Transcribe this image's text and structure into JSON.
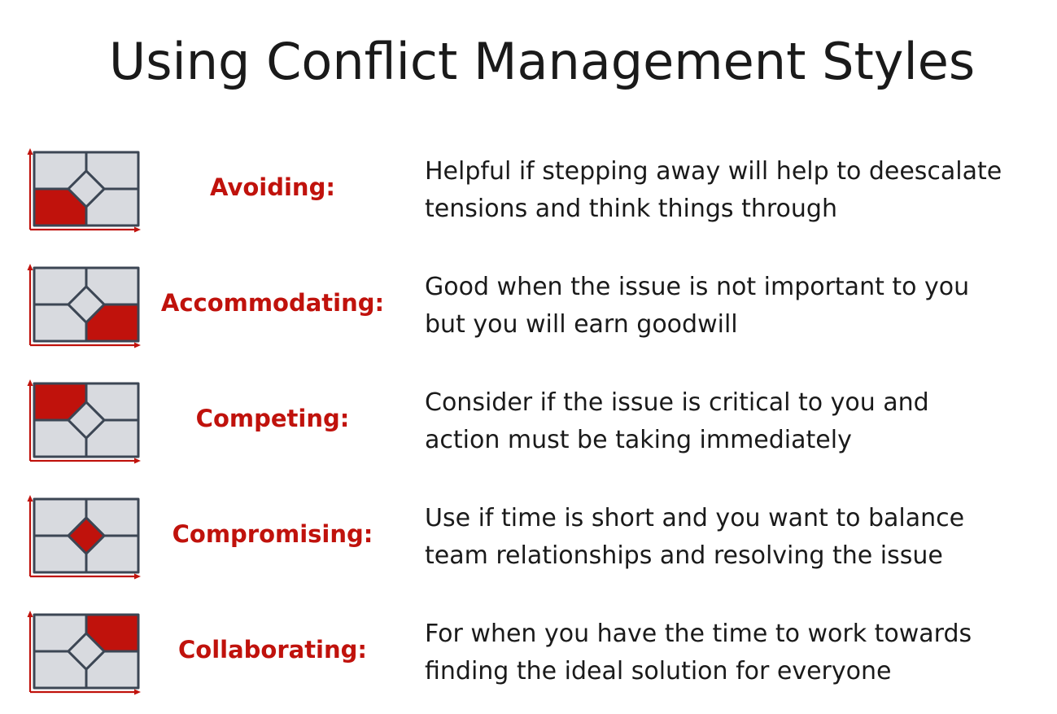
{
  "title": "Using Conflict Management Styles",
  "colors": {
    "accent": "#c0120c",
    "cell_fill": "#d8dadf",
    "cell_stroke": "#3c4654",
    "axis": "#c0120c",
    "text": "#1a1a1a"
  },
  "styles": [
    {
      "label": "Avoiding:",
      "highlight": "bottom-left",
      "lines": [
        "Helpful if stepping away will help to deescalate",
        "tensions and think things through"
      ]
    },
    {
      "label": "Accommodating:",
      "highlight": "bottom-right",
      "lines": [
        "Good when the issue is not important to you",
        "but you will earn goodwill"
      ]
    },
    {
      "label": "Competing:",
      "highlight": "top-left",
      "lines": [
        "Consider if the issue is critical to you and",
        "action must be taking immediately"
      ]
    },
    {
      "label": "Compromising:",
      "highlight": "center",
      "lines": [
        "Use if time is short and you want to balance",
        "team relationships and resolving the issue"
      ]
    },
    {
      "label": "Collaborating:",
      "highlight": "top-right",
      "lines": [
        "For when you have the time to work towards",
        "finding the ideal solution for everyone"
      ]
    }
  ]
}
